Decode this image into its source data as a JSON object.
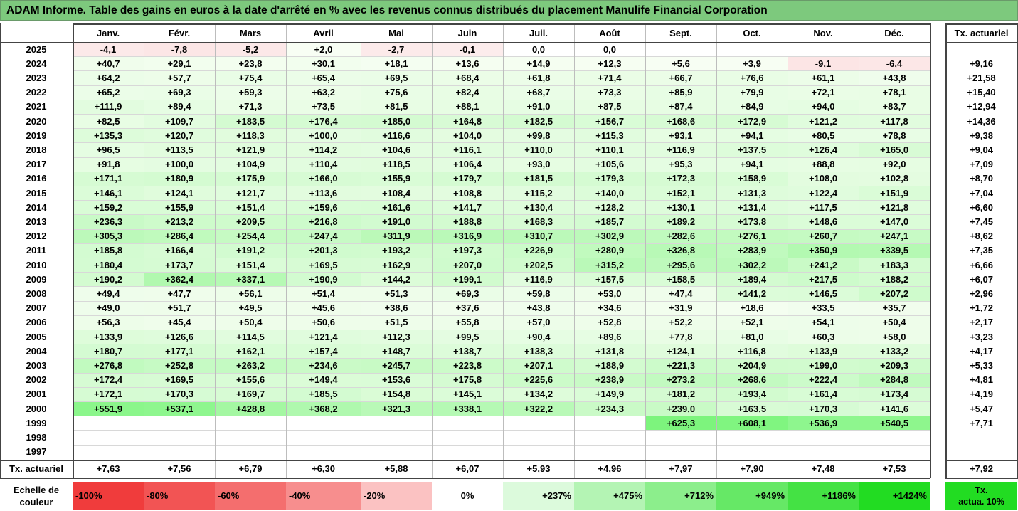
{
  "title": "ADAM Informe. Table des gains en euros à la date d'arrêté en % avec les revenus connus distribués du placement Manulife Financial Corporation",
  "chart_data": {
    "type": "table",
    "months": [
      "Janv.",
      "Févr.",
      "Mars",
      "Avril",
      "Mai",
      "Juin",
      "Juil.",
      "Août",
      "Sept.",
      "Oct.",
      "Nov.",
      "Déc."
    ],
    "rate_header": "Tx. actuariel",
    "rows": [
      {
        "year": "2025",
        "values": [
          "-4,1",
          "-7,8",
          "-5,2",
          "+2,0",
          "-2,7",
          "-0,1",
          "0,0",
          "0,0",
          "",
          "",
          "",
          ""
        ],
        "rate": ""
      },
      {
        "year": "2024",
        "values": [
          "+40,7",
          "+29,1",
          "+23,8",
          "+30,1",
          "+18,1",
          "+13,6",
          "+14,9",
          "+12,3",
          "+5,6",
          "+3,9",
          "-9,1",
          "-6,4"
        ],
        "rate": "+9,16"
      },
      {
        "year": "2023",
        "values": [
          "+64,2",
          "+57,7",
          "+75,4",
          "+65,4",
          "+69,5",
          "+68,4",
          "+61,8",
          "+71,4",
          "+66,7",
          "+76,6",
          "+61,1",
          "+43,8"
        ],
        "rate": "+21,58"
      },
      {
        "year": "2022",
        "values": [
          "+65,2",
          "+69,3",
          "+59,3",
          "+63,2",
          "+75,6",
          "+82,4",
          "+68,7",
          "+73,3",
          "+85,9",
          "+79,9",
          "+72,1",
          "+78,1"
        ],
        "rate": "+15,40"
      },
      {
        "year": "2021",
        "values": [
          "+111,9",
          "+89,4",
          "+71,3",
          "+73,5",
          "+81,5",
          "+88,1",
          "+91,0",
          "+87,5",
          "+87,4",
          "+84,9",
          "+94,0",
          "+83,7"
        ],
        "rate": "+12,94"
      },
      {
        "year": "2020",
        "values": [
          "+82,5",
          "+109,7",
          "+183,5",
          "+176,4",
          "+185,0",
          "+164,8",
          "+182,5",
          "+156,7",
          "+168,6",
          "+172,9",
          "+121,2",
          "+117,8"
        ],
        "rate": "+14,36"
      },
      {
        "year": "2019",
        "values": [
          "+135,3",
          "+120,7",
          "+118,3",
          "+100,0",
          "+116,6",
          "+104,0",
          "+99,8",
          "+115,3",
          "+93,1",
          "+94,1",
          "+80,5",
          "+78,8"
        ],
        "rate": "+9,38"
      },
      {
        "year": "2018",
        "values": [
          "+96,5",
          "+113,5",
          "+121,9",
          "+114,2",
          "+104,6",
          "+116,1",
          "+110,0",
          "+110,1",
          "+116,9",
          "+137,5",
          "+126,4",
          "+165,0"
        ],
        "rate": "+9,04"
      },
      {
        "year": "2017",
        "values": [
          "+91,8",
          "+100,0",
          "+104,9",
          "+110,4",
          "+118,5",
          "+106,4",
          "+93,0",
          "+105,6",
          "+95,3",
          "+94,1",
          "+88,8",
          "+92,0"
        ],
        "rate": "+7,09"
      },
      {
        "year": "2016",
        "values": [
          "+171,1",
          "+180,9",
          "+175,9",
          "+166,0",
          "+155,9",
          "+179,7",
          "+181,5",
          "+179,3",
          "+172,3",
          "+158,9",
          "+108,0",
          "+102,8"
        ],
        "rate": "+8,70"
      },
      {
        "year": "2015",
        "values": [
          "+146,1",
          "+124,1",
          "+121,7",
          "+113,6",
          "+108,4",
          "+108,8",
          "+115,2",
          "+140,0",
          "+152,1",
          "+131,3",
          "+122,4",
          "+151,9"
        ],
        "rate": "+7,04"
      },
      {
        "year": "2014",
        "values": [
          "+159,2",
          "+155,9",
          "+151,4",
          "+159,6",
          "+161,6",
          "+141,7",
          "+130,4",
          "+128,2",
          "+130,1",
          "+131,4",
          "+117,5",
          "+121,8"
        ],
        "rate": "+6,60"
      },
      {
        "year": "2013",
        "values": [
          "+236,3",
          "+213,2",
          "+209,5",
          "+216,8",
          "+191,0",
          "+188,8",
          "+168,3",
          "+185,7",
          "+189,2",
          "+173,8",
          "+148,6",
          "+147,0"
        ],
        "rate": "+7,45"
      },
      {
        "year": "2012",
        "values": [
          "+305,3",
          "+286,4",
          "+254,4",
          "+247,4",
          "+311,9",
          "+316,9",
          "+310,7",
          "+302,9",
          "+282,6",
          "+276,1",
          "+260,7",
          "+247,1"
        ],
        "rate": "+8,62"
      },
      {
        "year": "2011",
        "values": [
          "+185,8",
          "+166,4",
          "+191,2",
          "+201,3",
          "+193,2",
          "+197,3",
          "+226,9",
          "+280,9",
          "+326,8",
          "+283,9",
          "+350,9",
          "+339,5"
        ],
        "rate": "+7,35"
      },
      {
        "year": "2010",
        "values": [
          "+180,4",
          "+173,7",
          "+151,4",
          "+169,5",
          "+162,9",
          "+207,0",
          "+202,5",
          "+315,2",
          "+295,6",
          "+302,2",
          "+241,2",
          "+183,3"
        ],
        "rate": "+6,66"
      },
      {
        "year": "2009",
        "values": [
          "+190,2",
          "+362,4",
          "+337,1",
          "+190,9",
          "+144,2",
          "+199,1",
          "+116,9",
          "+157,5",
          "+158,5",
          "+189,4",
          "+217,5",
          "+188,2"
        ],
        "rate": "+6,07"
      },
      {
        "year": "2008",
        "values": [
          "+49,4",
          "+47,7",
          "+56,1",
          "+51,4",
          "+51,3",
          "+69,3",
          "+59,8",
          "+53,0",
          "+47,4",
          "+141,2",
          "+146,5",
          "+207,2"
        ],
        "rate": "+2,96"
      },
      {
        "year": "2007",
        "values": [
          "+49,0",
          "+51,7",
          "+49,5",
          "+45,6",
          "+38,6",
          "+37,6",
          "+43,8",
          "+34,6",
          "+31,9",
          "+18,6",
          "+33,5",
          "+35,7"
        ],
        "rate": "+1,72"
      },
      {
        "year": "2006",
        "values": [
          "+56,3",
          "+45,4",
          "+50,4",
          "+50,6",
          "+51,5",
          "+55,8",
          "+57,0",
          "+52,8",
          "+52,2",
          "+52,1",
          "+54,1",
          "+50,4"
        ],
        "rate": "+2,17"
      },
      {
        "year": "2005",
        "values": [
          "+133,9",
          "+126,6",
          "+114,5",
          "+121,4",
          "+112,3",
          "+99,5",
          "+90,4",
          "+89,6",
          "+77,8",
          "+81,0",
          "+60,3",
          "+58,0"
        ],
        "rate": "+3,23"
      },
      {
        "year": "2004",
        "values": [
          "+180,7",
          "+177,1",
          "+162,1",
          "+157,4",
          "+148,7",
          "+138,7",
          "+138,3",
          "+131,8",
          "+124,1",
          "+116,8",
          "+133,9",
          "+133,2"
        ],
        "rate": "+4,17"
      },
      {
        "year": "2003",
        "values": [
          "+276,8",
          "+252,8",
          "+263,2",
          "+234,6",
          "+245,7",
          "+223,8",
          "+207,1",
          "+188,9",
          "+221,3",
          "+204,9",
          "+199,0",
          "+209,3"
        ],
        "rate": "+5,33"
      },
      {
        "year": "2002",
        "values": [
          "+172,4",
          "+169,5",
          "+155,6",
          "+149,4",
          "+153,6",
          "+175,8",
          "+225,6",
          "+238,9",
          "+273,2",
          "+268,6",
          "+222,4",
          "+284,8"
        ],
        "rate": "+4,81"
      },
      {
        "year": "2001",
        "values": [
          "+172,1",
          "+170,3",
          "+169,7",
          "+185,5",
          "+154,8",
          "+145,1",
          "+134,2",
          "+149,9",
          "+181,2",
          "+193,4",
          "+161,4",
          "+173,4"
        ],
        "rate": "+4,19"
      },
      {
        "year": "2000",
        "values": [
          "+551,9",
          "+537,1",
          "+428,8",
          "+368,2",
          "+321,3",
          "+338,1",
          "+322,2",
          "+234,3",
          "+239,0",
          "+163,5",
          "+170,3",
          "+141,6"
        ],
        "rate": "+5,47"
      },
      {
        "year": "1999",
        "values": [
          "",
          "",
          "",
          "",
          "",
          "",
          "",
          "",
          "+625,3",
          "+608,1",
          "+536,9",
          "+540,5"
        ],
        "rate": "+7,71"
      },
      {
        "year": "1998",
        "values": [
          "",
          "",
          "",
          "",
          "",
          "",
          "",
          "",
          "",
          "",
          "",
          ""
        ],
        "rate": ""
      },
      {
        "year": "1997",
        "values": [
          "",
          "",
          "",
          "",
          "",
          "",
          "",
          "",
          "",
          "",
          "",
          ""
        ],
        "rate": ""
      }
    ],
    "footer": {
      "label": "Tx. actuariel",
      "values": [
        "+7,63",
        "+7,56",
        "+6,79",
        "+6,30",
        "+5,88",
        "+6,07",
        "+5,93",
        "+4,96",
        "+7,97",
        "+7,90",
        "+7,48",
        "+7,53"
      ],
      "total": "+7,92"
    },
    "legend": {
      "label": "Echelle de couleur",
      "items": [
        {
          "text": "-100%",
          "color": "#f03c3c"
        },
        {
          "text": "-80%",
          "color": "#f25454"
        },
        {
          "text": "-60%",
          "color": "#f46e6e"
        },
        {
          "text": "-40%",
          "color": "#f78e8e"
        },
        {
          "text": "-20%",
          "color": "#fbc2c2"
        },
        {
          "text": "0%",
          "color": "#ffffff"
        },
        {
          "text": "+237%",
          "color": "#dcfadc"
        },
        {
          "text": "+475%",
          "color": "#b4f4b4"
        },
        {
          "text": "+712%",
          "color": "#8cee8c"
        },
        {
          "text": "+949%",
          "color": "#66e866"
        },
        {
          "text": "+1186%",
          "color": "#44e244"
        },
        {
          "text": "+1424%",
          "color": "#22dc22"
        }
      ],
      "rate_label": "Tx. actua. 10%",
      "rate_color": "#22dc22"
    }
  }
}
